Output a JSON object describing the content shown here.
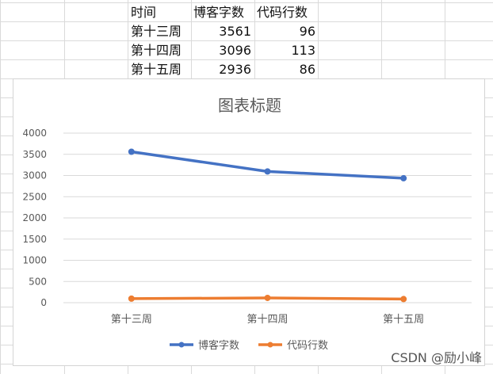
{
  "table": {
    "headers": [
      "时间",
      "博客字数",
      "代码行数"
    ],
    "rows": [
      [
        "第十三周",
        "3561",
        "96"
      ],
      [
        "第十四周",
        "3096",
        "113"
      ],
      [
        "第十五周",
        "2936",
        "86"
      ]
    ]
  },
  "chart_data": {
    "type": "line",
    "title": "图表标题",
    "categories": [
      "第十三周",
      "第十四周",
      "第十五周"
    ],
    "series": [
      {
        "name": "博客字数",
        "values": [
          3561,
          3096,
          2936
        ],
        "color": "#4472C4"
      },
      {
        "name": "代码行数",
        "values": [
          96,
          113,
          86
        ],
        "color": "#ED7D31"
      }
    ],
    "ylim": [
      0,
      4000
    ],
    "yticks": [
      "0",
      "500",
      "1000",
      "1500",
      "2000",
      "2500",
      "3000",
      "3500",
      "4000"
    ],
    "grid": true,
    "legend": "bottom"
  },
  "watermark": "CSDN @励小峰"
}
